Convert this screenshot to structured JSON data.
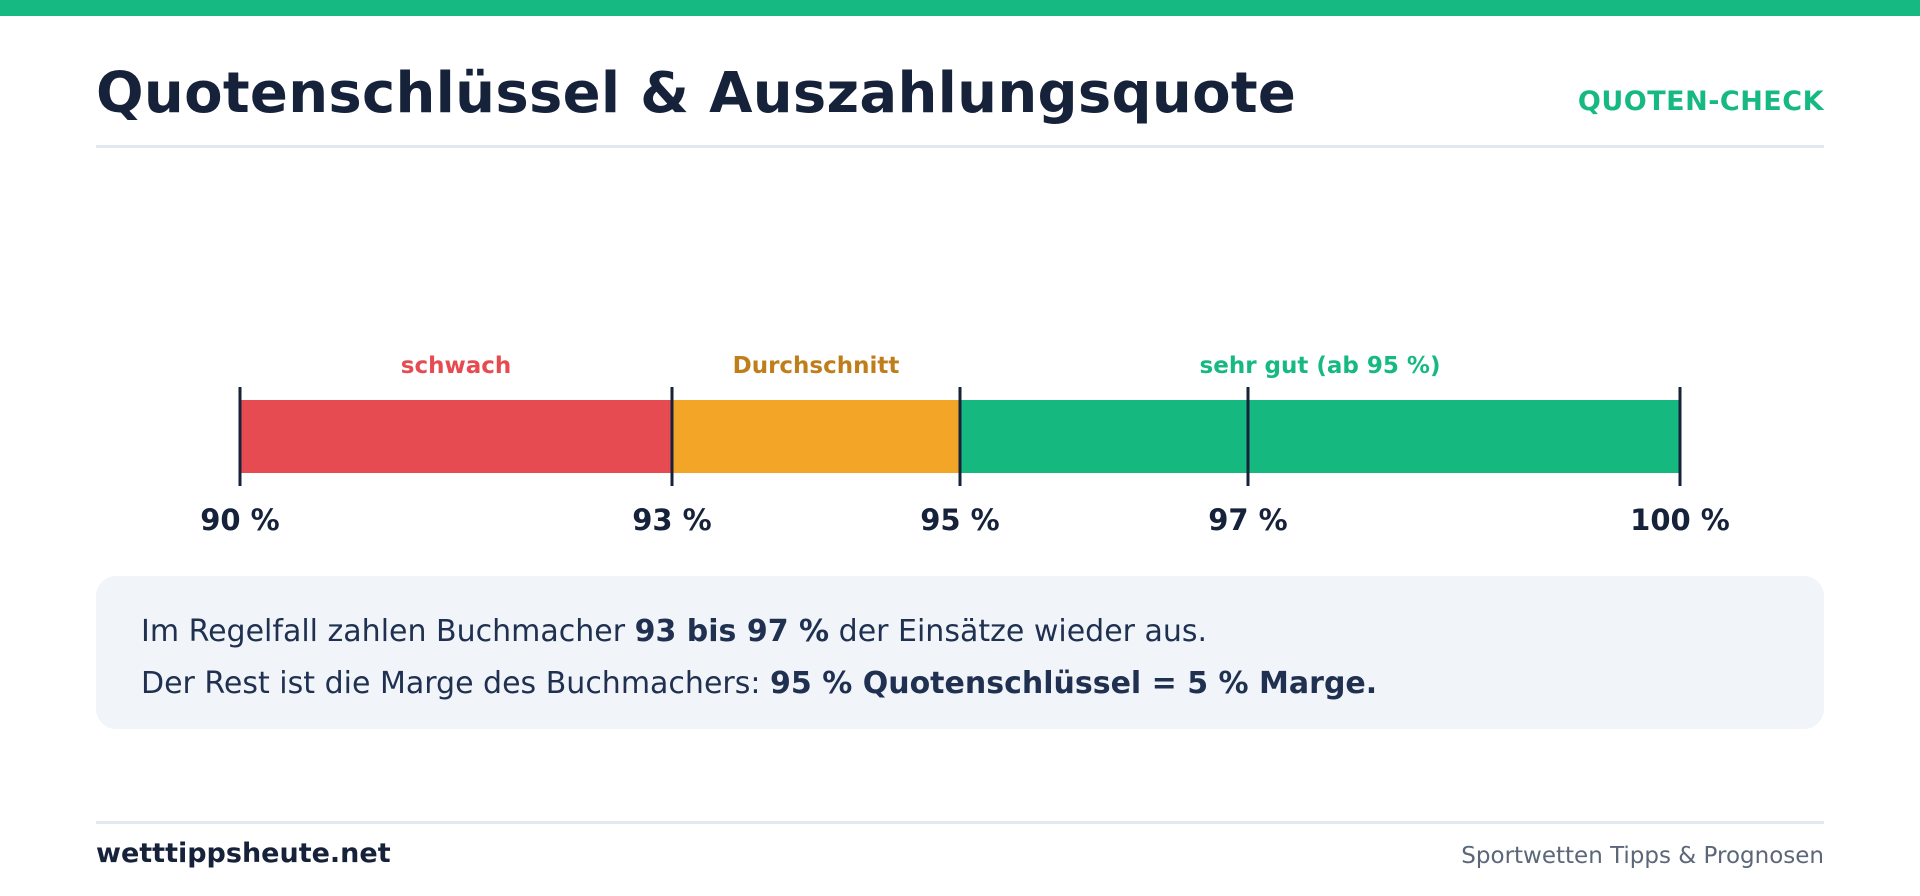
{
  "header": {
    "title": "Quotenschlüssel & Auszahlungsquote",
    "tag": "QUOTEN-CHECK"
  },
  "colors": {
    "accent": "#17b982",
    "weak": "#e54b51",
    "average": "#f2a527",
    "good": "#15b97f",
    "text_dark": "#16213a"
  },
  "chart_data": {
    "type": "bar",
    "orientation": "horizontal-scale",
    "xlim": [
      90,
      100
    ],
    "ticks": [
      90,
      93,
      95,
      97,
      100
    ],
    "tick_labels": [
      "90 %",
      "93 %",
      "95 %",
      "97 %",
      "100 %"
    ],
    "segments": [
      {
        "label": "schwach",
        "from": 90,
        "to": 93,
        "color": "#e54b51",
        "label_color": "#e54b51"
      },
      {
        "label": "Durchschnitt",
        "from": 93,
        "to": 95,
        "color": "#f2a527",
        "label_color": "#c07e1b"
      },
      {
        "label": "sehr gut (ab 95 %)",
        "from": 95,
        "to": 100,
        "color": "#15b97f",
        "label_color": "#17b982"
      }
    ]
  },
  "info": {
    "line1_pre": "Im Regelfall zahlen Buchmacher ",
    "line1_bold": "93 bis 97 %",
    "line1_post": " der Einsätze wieder aus.",
    "line2_pre": "Der Rest ist die Marge des Buchmachers: ",
    "line2_bold": "95 % Quotenschlüssel = 5 % Marge."
  },
  "footer": {
    "site": "wetttippsheute.net",
    "tagline": "Sportwetten Tipps & Prognosen"
  }
}
